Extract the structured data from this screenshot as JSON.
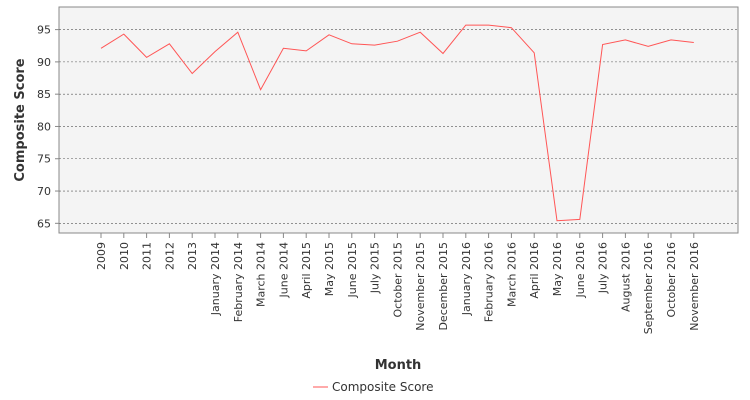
{
  "chart_data": {
    "type": "line",
    "title": "",
    "xlabel": "Month",
    "ylabel": "Composite Score",
    "ylim": [
      63.5,
      98.5
    ],
    "yticks": [
      65,
      70,
      75,
      80,
      85,
      90,
      95
    ],
    "grid": "horizontal dashed",
    "legend": "bottom-center",
    "categories": [
      "2009",
      "2010",
      "2011",
      "2012",
      "2013",
      "January 2014",
      "February 2014",
      "March 2014",
      "June 2014",
      "April 2015",
      "May 2015",
      "June 2015",
      "July 2015",
      "October 2015",
      "November 2015",
      "December 2015",
      "January 2016",
      "February 2016",
      "March 2016",
      "April 2016",
      "May 2016",
      "June 2016",
      "July 2016",
      "August 2016",
      "September 2016",
      "October 2016",
      "November 2016"
    ],
    "series": [
      {
        "name": "Composite Score",
        "color": "#ff5555",
        "values": [
          92.1,
          94.3,
          90.7,
          92.8,
          88.2,
          91.6,
          94.6,
          85.7,
          92.1,
          91.7,
          94.2,
          92.8,
          92.6,
          93.2,
          94.6,
          91.3,
          95.7,
          95.7,
          95.3,
          91.4,
          65.4,
          65.6,
          92.7,
          93.4,
          92.4,
          93.4,
          93.0
        ]
      }
    ]
  }
}
